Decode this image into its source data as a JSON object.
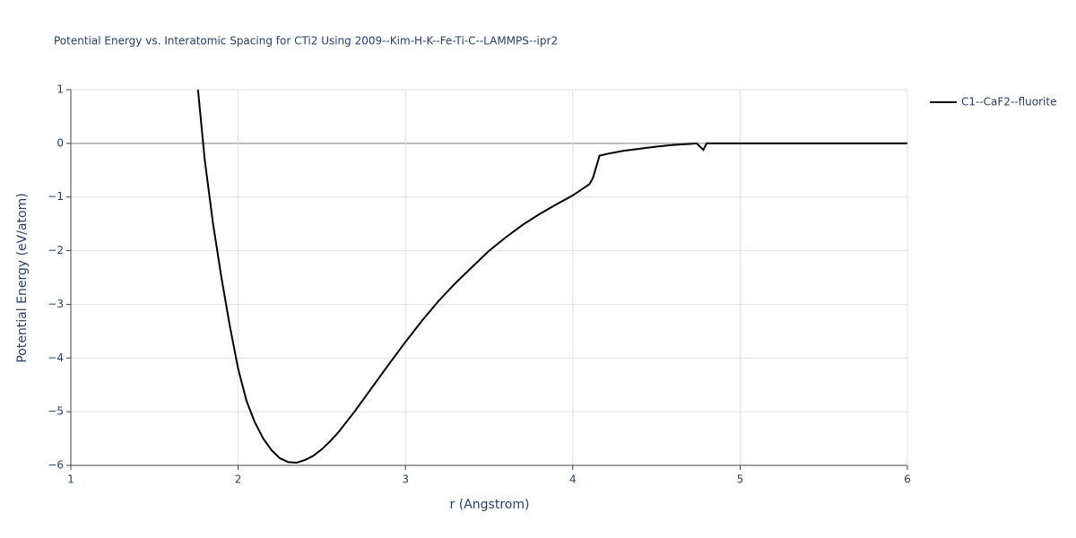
{
  "chart_data": {
    "type": "line",
    "title": "Potential Energy vs. Interatomic Spacing for CTi2 Using 2009--Kim-H-K--Fe-Ti-C--LAMMPS--ipr2",
    "x_label": "r (Angstrom)",
    "y_label": "Potential Energy (eV/atom)",
    "x": [
      1.76,
      1.8,
      1.85,
      1.9,
      1.95,
      2.0,
      2.05,
      2.1,
      2.15,
      2.2,
      2.25,
      2.3,
      2.35,
      2.4,
      2.45,
      2.5,
      2.55,
      2.6,
      2.7,
      2.8,
      2.9,
      3.0,
      3.1,
      3.2,
      3.3,
      3.4,
      3.5,
      3.6,
      3.7,
      3.8,
      3.9,
      4.0,
      4.1,
      4.12,
      4.16,
      4.2,
      4.3,
      4.4,
      4.5,
      4.6,
      4.7,
      4.74,
      4.78,
      4.8,
      5.0,
      6.0
    ],
    "series": [
      {
        "name": "C1--CaF2--fluorite",
        "color": "#000000",
        "values": [
          1.0,
          -0.3,
          -1.5,
          -2.5,
          -3.4,
          -4.2,
          -4.8,
          -5.2,
          -5.5,
          -5.72,
          -5.87,
          -5.94,
          -5.95,
          -5.9,
          -5.82,
          -5.7,
          -5.55,
          -5.38,
          -4.98,
          -4.55,
          -4.12,
          -3.7,
          -3.3,
          -2.93,
          -2.6,
          -2.3,
          -2.0,
          -1.75,
          -1.52,
          -1.32,
          -1.14,
          -0.97,
          -0.76,
          -0.65,
          -0.23,
          -0.2,
          -0.14,
          -0.1,
          -0.06,
          -0.03,
          -0.01,
          0,
          -0.12,
          0,
          0,
          0
        ]
      }
    ],
    "xlim": [
      1,
      6
    ],
    "xticks": [
      1,
      2,
      3,
      4,
      5,
      6
    ],
    "ylim": [
      -6,
      1
    ],
    "yticks": [
      {
        "value": -6,
        "label": "−6"
      },
      {
        "value": -5,
        "label": "−5"
      },
      {
        "value": -4,
        "label": "−4"
      },
      {
        "value": -3,
        "label": "−3"
      },
      {
        "value": -2,
        "label": "−2"
      },
      {
        "value": -1,
        "label": "−1"
      },
      0,
      1
    ],
    "grid": true
  }
}
